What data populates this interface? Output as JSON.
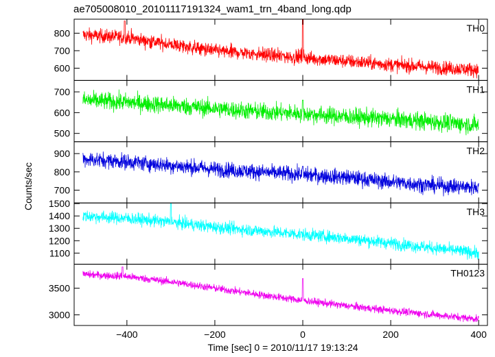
{
  "title": "ae705008010_20101117191324_wam1_trn_4band_long.qdp",
  "xlabel": "Time [sec] 0 = 2010/11/17 19:13:24",
  "ylabel": "Counts/sec",
  "chart_data": {
    "type": "line",
    "shared_x": true,
    "xlim": [
      -520,
      420
    ],
    "x_ticks": [
      -400,
      -200,
      0,
      200,
      400
    ],
    "x_tick_labels": [
      "−400",
      "−200",
      "0",
      "200",
      "400"
    ],
    "x_range": [
      -500,
      400
    ],
    "panels": [
      {
        "label": "TH0",
        "color": "#ff0000",
        "ylim": [
          530,
          880
        ],
        "y_ticks": [
          600,
          700,
          800
        ],
        "y_tick_labels": [
          "600",
          "700",
          "800"
        ],
        "trend": [
          [
            -500,
            790
          ],
          [
            -400,
            775
          ],
          [
            -300,
            735
          ],
          [
            -200,
            700
          ],
          [
            -100,
            680
          ],
          [
            0,
            660
          ],
          [
            100,
            640
          ],
          [
            200,
            620
          ],
          [
            300,
            605
          ],
          [
            400,
            590
          ]
        ],
        "noise": 28,
        "spikes": [
          {
            "x": 0,
            "y": 880
          },
          {
            "x": -405,
            "y": 870
          }
        ]
      },
      {
        "label": "TH1",
        "color": "#00ee00",
        "ylim": [
          460,
          755
        ],
        "y_ticks": [
          500,
          600,
          700
        ],
        "y_tick_labels": [
          "500",
          "600",
          "700"
        ],
        "trend": [
          [
            -500,
            660
          ],
          [
            -400,
            650
          ],
          [
            -300,
            635
          ],
          [
            -200,
            620
          ],
          [
            -100,
            605
          ],
          [
            0,
            595
          ],
          [
            100,
            580
          ],
          [
            200,
            570
          ],
          [
            300,
            555
          ],
          [
            400,
            540
          ]
        ],
        "noise": 30,
        "spikes": [
          {
            "x": 0,
            "y": 660
          }
        ]
      },
      {
        "label": "TH2",
        "color": "#0000dd",
        "ylim": [
          630,
          965
        ],
        "y_ticks": [
          700,
          800,
          900
        ],
        "y_tick_labels": [
          "700",
          "800",
          "900"
        ],
        "trend": [
          [
            -500,
            870
          ],
          [
            -400,
            855
          ],
          [
            -300,
            835
          ],
          [
            -200,
            815
          ],
          [
            -100,
            800
          ],
          [
            0,
            785
          ],
          [
            100,
            770
          ],
          [
            200,
            745
          ],
          [
            300,
            725
          ],
          [
            400,
            715
          ]
        ],
        "noise": 30,
        "spikes": [
          {
            "x": 0,
            "y": 830
          }
        ]
      },
      {
        "label": "TH3",
        "color": "#00ffff",
        "ylim": [
          1010,
          1505
        ],
        "y_ticks": [
          1100,
          1200,
          1300,
          1400,
          1500
        ],
        "y_tick_labels": [
          "1100",
          "1200",
          "1300",
          "1400",
          "1500"
        ],
        "trend": [
          [
            -500,
            1400
          ],
          [
            -400,
            1380
          ],
          [
            -300,
            1350
          ],
          [
            -200,
            1310
          ],
          [
            -100,
            1280
          ],
          [
            0,
            1250
          ],
          [
            100,
            1220
          ],
          [
            200,
            1180
          ],
          [
            300,
            1140
          ],
          [
            400,
            1100
          ]
        ],
        "noise": 35,
        "spikes": [
          {
            "x": -300,
            "y": 1500
          }
        ]
      },
      {
        "label": "TH0123",
        "color": "#ee00ee",
        "ylim": [
          2800,
          3950
        ],
        "y_ticks": [
          3000,
          3500
        ],
        "y_tick_labels": [
          "3000",
          "3500"
        ],
        "trend": [
          [
            -500,
            3760
          ],
          [
            -400,
            3720
          ],
          [
            -300,
            3620
          ],
          [
            -200,
            3500
          ],
          [
            -100,
            3380
          ],
          [
            0,
            3270
          ],
          [
            100,
            3170
          ],
          [
            200,
            3080
          ],
          [
            300,
            3000
          ],
          [
            400,
            2920
          ]
        ],
        "noise": 50,
        "spikes": [
          {
            "x": 0,
            "y": 3680
          },
          {
            "x": -410,
            "y": 3900
          }
        ]
      }
    ]
  }
}
